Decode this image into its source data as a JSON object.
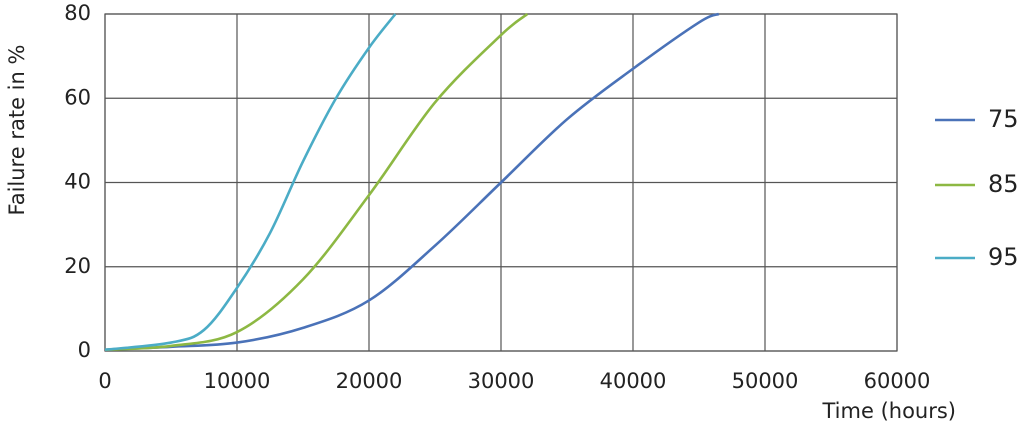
{
  "chart_data": {
    "type": "line",
    "x_label": "Time (hours)",
    "y_label": "Failure rate in %",
    "xlim": [
      0,
      60000
    ],
    "xticks": [
      0,
      10000,
      20000,
      30000,
      40000,
      50000,
      60000
    ],
    "ylim": [
      0,
      80
    ],
    "yticks": [
      0,
      20,
      40,
      60,
      80
    ],
    "grid": true,
    "legend": "right",
    "series": [
      {
        "name": "75",
        "color": "#4a72b8",
        "x": [
          0,
          5000,
          10000,
          15000,
          20000,
          25000,
          30000,
          35000,
          40000,
          45000,
          46500
        ],
        "values": [
          0.3,
          1,
          2,
          5.5,
          12,
          25,
          40,
          55,
          67,
          78,
          80
        ]
      },
      {
        "name": "85",
        "color": "#8db843",
        "x": [
          0,
          5000,
          10000,
          15000,
          20000,
          25000,
          30000,
          32000
        ],
        "values": [
          0.3,
          1.2,
          4.5,
          17,
          37,
          59,
          75,
          80
        ]
      },
      {
        "name": "95",
        "color": "#4bacc6",
        "x": [
          0,
          5000,
          7500,
          10000,
          12500,
          15000,
          17500,
          20000,
          22000
        ],
        "values": [
          0.3,
          2,
          5,
          15,
          28,
          45,
          60,
          72,
          80
        ]
      }
    ]
  }
}
